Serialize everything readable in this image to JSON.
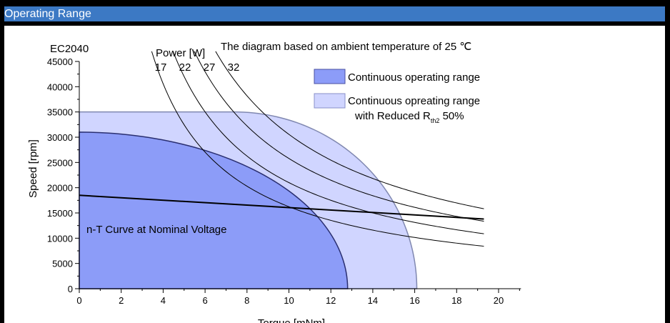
{
  "header": {
    "title": "Operating Range"
  },
  "chart_data": {
    "type": "area",
    "title": "",
    "motor_label": "EC2040",
    "note": "The diagram based on ambient temperature of 25 ℃",
    "xlabel": "Torque [mNm]",
    "ylabel": "Speed [rpm]",
    "xlim": [
      0,
      21
    ],
    "ylim": [
      0,
      45000
    ],
    "x_ticks": [
      0,
      2,
      4,
      6,
      8,
      10,
      12,
      14,
      16,
      18,
      20
    ],
    "y_ticks": [
      0,
      5000,
      10000,
      15000,
      20000,
      25000,
      30000,
      35000,
      40000,
      45000
    ],
    "grid": false,
    "legend_position": "top-right",
    "power_label": "Power [W]",
    "power_curves": [
      {
        "label": "17",
        "watts": 17
      },
      {
        "label": "22",
        "watts": 22
      },
      {
        "label": "27",
        "watts": 27
      },
      {
        "label": "32",
        "watts": 32
      }
    ],
    "power_x_range": [
      2.6,
      19.3
    ],
    "series": [
      {
        "name": "Continuous opreating range",
        "name_line2": "with Reduced R",
        "name_sub": "th2",
        "name_suffix": " 50%",
        "color": "#d0d5ff",
        "flat_speed": 35000,
        "flat_until_torque": 7.4,
        "max_torque": 16.1
      },
      {
        "name": "Continuous operating range",
        "color": "#8c9cf8",
        "zero_torque_speed": 31000,
        "max_torque": 12.8
      }
    ],
    "nt_curve": {
      "label": "n-T Curve at Nominal Voltage",
      "x": [
        0,
        19.3
      ],
      "y": [
        18500,
        13800
      ]
    }
  }
}
